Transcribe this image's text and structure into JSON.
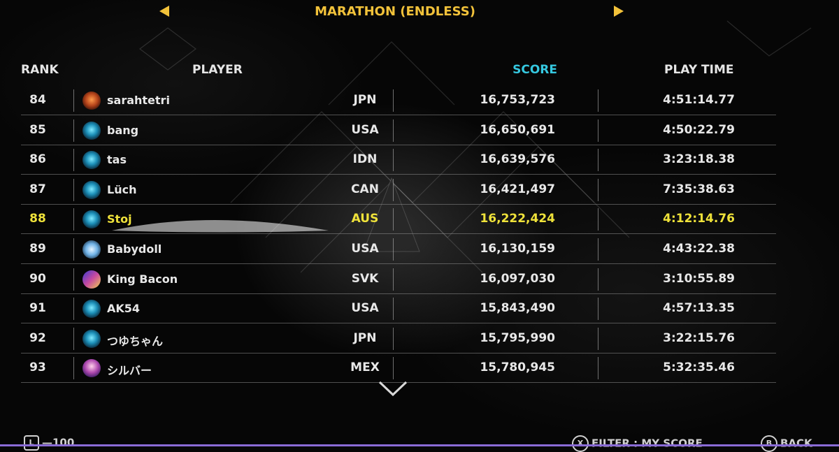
{
  "header": {
    "title": "MARATHON (ENDLESS)",
    "columns": {
      "rank": "RANK",
      "player": "PLAYER",
      "score": "SCORE",
      "play_time": "PLAY TIME"
    }
  },
  "rows": [
    {
      "rank": "84",
      "player": "sarahtetri",
      "country": "JPN",
      "score": "16,753,723",
      "time": "4:51:14.77",
      "avatar": "orange-blocks-avatar-icon"
    },
    {
      "rank": "85",
      "player": "bang",
      "country": "USA",
      "score": "16,650,691",
      "time": "4:50:22.79",
      "avatar": "blue-orb-avatar-icon"
    },
    {
      "rank": "86",
      "player": "tas",
      "country": "IDN",
      "score": "16,639,576",
      "time": "3:23:18.38",
      "avatar": "blue-orb-avatar-icon"
    },
    {
      "rank": "87",
      "player": "Lüch",
      "country": "CAN",
      "score": "16,421,497",
      "time": "7:35:38.63",
      "avatar": "blue-orb-avatar-icon"
    },
    {
      "rank": "88",
      "player": "Stoj",
      "country": "AUS",
      "score": "16,222,424",
      "time": "4:12:14.76",
      "avatar": "blue-orb-avatar-icon",
      "highlight": true
    },
    {
      "rank": "89",
      "player": "Babydoll",
      "country": "USA",
      "score": "16,130,159",
      "time": "4:43:22.38",
      "avatar": "sparkle-fish-avatar-icon"
    },
    {
      "rank": "90",
      "player": "King Bacon",
      "country": "SVK",
      "score": "16,097,030",
      "time": "3:10:55.89",
      "avatar": "pixel-blocks-avatar-icon"
    },
    {
      "rank": "91",
      "player": "AK54",
      "country": "USA",
      "score": "15,843,490",
      "time": "4:57:13.35",
      "avatar": "blue-orb-avatar-icon"
    },
    {
      "rank": "92",
      "player": "つゆちゃん",
      "country": "JPN",
      "score": "15,795,990",
      "time": "3:22:15.76",
      "avatar": "blue-orb-avatar-icon"
    },
    {
      "rank": "93",
      "player": "シルバー",
      "country": "MEX",
      "score": "15,780,945",
      "time": "5:32:35.46",
      "avatar": "jellyfish-avatar-icon"
    }
  ],
  "footer": {
    "jump": "—100",
    "jump_button": "L",
    "filter": "FILTER : MY SCORE",
    "filter_button": "X",
    "back": "BACK",
    "back_button": "B"
  },
  "colors": {
    "accent_yellow": "#f2c23a",
    "score_header": "#35c8e0",
    "highlight_row": "#efe23a"
  }
}
